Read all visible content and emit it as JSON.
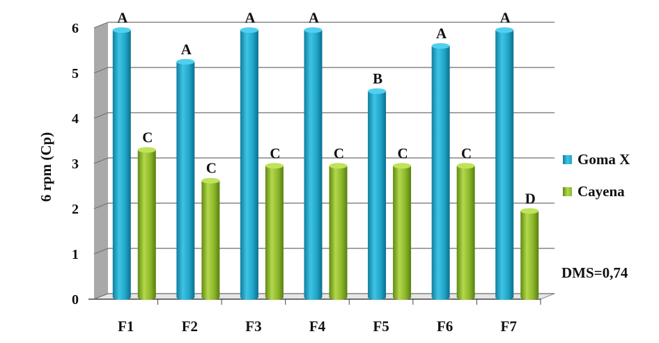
{
  "chart_data": {
    "type": "bar",
    "ylabel": "6 rpm (Cp)",
    "ylim": [
      0,
      6
    ],
    "yticks": [
      0,
      1,
      2,
      3,
      4,
      5,
      6
    ],
    "categories": [
      "F1",
      "F2",
      "F3",
      "F4",
      "F5",
      "F6",
      "F7"
    ],
    "series": [
      {
        "name": "Goma X",
        "color": "#1fa6c8",
        "values": [
          5.95,
          5.25,
          5.95,
          5.95,
          4.6,
          5.6,
          5.95
        ],
        "labels": [
          "A",
          "A",
          "A",
          "A",
          "B",
          "A",
          "A"
        ]
      },
      {
        "name": "Cayena",
        "color": "#8db52b",
        "values": [
          3.3,
          2.62,
          2.95,
          2.95,
          2.95,
          2.95,
          1.95
        ],
        "labels": [
          "C",
          "C",
          "C",
          "C",
          "C",
          "C",
          "D"
        ]
      }
    ],
    "grid": true,
    "legend": "right",
    "annotation": "DMS=0,74"
  }
}
